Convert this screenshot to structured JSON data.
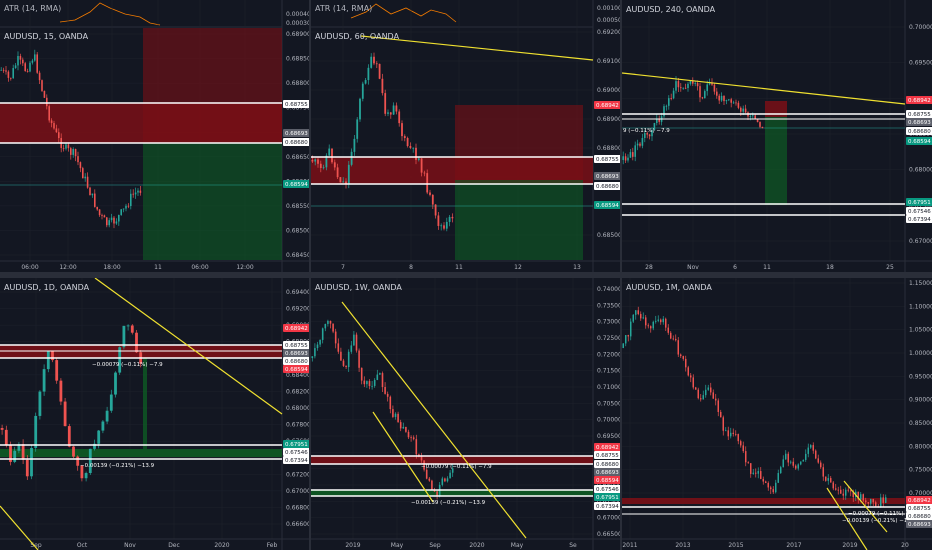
{
  "colors": {
    "background": "#131722",
    "grid": "#1e222d",
    "divider": "#2a2e39",
    "up": "#26a69a",
    "down": "#ef5350",
    "trendline": "#f0e130",
    "level": "#ffffff",
    "atr": "#f57c00",
    "loss_zone": "#7a0f16",
    "profit_zone": "#0e5b24",
    "label_red": "#f23645",
    "label_green": "#089981"
  },
  "panels": [
    {
      "id": "p15",
      "title": "AUDUSD, 15, OANDA",
      "atr_label": "ATR (14, RMA)",
      "atr_ticks": [
        "0.00040",
        "0.00030"
      ],
      "y_ticks": [
        "0.68900",
        "0.68850",
        "0.68800",
        "0.68750",
        "0.68700",
        "0.68650",
        "0.68600",
        "0.68550",
        "0.68500",
        "0.68450"
      ],
      "x_ticks": [
        "06:00",
        "12:00",
        "18:00",
        "11",
        "06:00",
        "12:00"
      ],
      "price_labels": [
        {
          "text": "0.68755",
          "type": "white"
        },
        {
          "text": "0.68693",
          "type": "gray"
        },
        {
          "text": "0.68680",
          "type": "white"
        },
        {
          "text": "0.68594",
          "type": "green"
        }
      ]
    },
    {
      "id": "p60",
      "title": "AUDUSD, 60, OANDA",
      "atr_label": "ATR (14, RMA)",
      "atr_ticks": [
        "0.00100",
        "0.00050"
      ],
      "y_ticks": [
        "0.69200",
        "0.69100",
        "0.69000",
        "0.68900",
        "0.68800",
        "0.68700",
        "0.68600",
        "0.68500"
      ],
      "x_ticks": [
        "7",
        "8",
        "11",
        "12",
        "13"
      ],
      "price_labels": [
        {
          "text": "0.68942",
          "type": "red"
        },
        {
          "text": "0.68755",
          "type": "white"
        },
        {
          "text": "0.68693",
          "type": "gray"
        },
        {
          "text": "0.68680",
          "type": "white"
        },
        {
          "text": "0.68594",
          "type": "green"
        }
      ]
    },
    {
      "id": "p240",
      "title": "AUDUSD, 240, OANDA",
      "y_ticks": [
        "0.70000",
        "0.69500",
        "0.69000",
        "0.68500",
        "0.68000",
        "0.67500",
        "0.67000"
      ],
      "x_ticks": [
        "28",
        "Nov",
        "6",
        "11",
        "18",
        "25"
      ],
      "measure": "9 (−0.11%) −7.9",
      "price_labels": [
        {
          "text": "0.68942",
          "type": "red"
        },
        {
          "text": "0.68755",
          "type": "white"
        },
        {
          "text": "0.68693",
          "type": "gray"
        },
        {
          "text": "0.68680",
          "type": "white"
        },
        {
          "text": "0.68594",
          "type": "green"
        },
        {
          "text": "0.67951",
          "type": "green"
        },
        {
          "text": "0.67546",
          "type": "white"
        },
        {
          "text": "0.67394",
          "type": "white"
        }
      ]
    },
    {
      "id": "p1d",
      "title": "AUDUSD, 1D, OANDA",
      "y_ticks": [
        "0.69400",
        "0.69200",
        "0.69000",
        "0.68800",
        "0.68600",
        "0.68400",
        "0.68200",
        "0.68000",
        "0.67800",
        "0.67600",
        "0.67400",
        "0.67200",
        "0.67000",
        "0.66800",
        "0.66600"
      ],
      "x_ticks": [
        "Sep",
        "Oct",
        "Nov",
        "Dec",
        "2020",
        "Feb"
      ],
      "measure": "−0.00079 (−0.11%) −7.9",
      "measure2": "−0.00139 (−0.21%) −13.9",
      "price_labels": [
        {
          "text": "0.68942",
          "type": "red"
        },
        {
          "text": "0.68755",
          "type": "white"
        },
        {
          "text": "0.68693",
          "type": "gray"
        },
        {
          "text": "0.68680",
          "type": "white"
        },
        {
          "text": "0.68594",
          "type": "red"
        },
        {
          "text": "0.67951",
          "type": "green"
        },
        {
          "text": "0.67546",
          "type": "white"
        },
        {
          "text": "0.67394",
          "type": "white"
        }
      ]
    },
    {
      "id": "p1w",
      "title": "AUDUSD, 1W, OANDA",
      "y_ticks": [
        "0.74000",
        "0.73500",
        "0.73000",
        "0.72500",
        "0.72000",
        "0.71500",
        "0.71000",
        "0.70500",
        "0.70000",
        "0.69500",
        "0.69000",
        "0.68500",
        "0.68000",
        "0.67500",
        "0.67000",
        "0.66500"
      ],
      "x_ticks": [
        "2019",
        "May",
        "Sep",
        "2020",
        "May",
        "Se"
      ],
      "measure": "−0.00079 (−0.11%) −7.9",
      "measure2": "−0.00139 (−0.21%) −13.9",
      "price_labels": [
        {
          "text": "0.68942",
          "type": "red"
        },
        {
          "text": "0.68755",
          "type": "white"
        },
        {
          "text": "0.68680",
          "type": "white"
        },
        {
          "text": "0.68693",
          "type": "gray"
        },
        {
          "text": "0.68594",
          "type": "red"
        },
        {
          "text": "0.67546",
          "type": "white"
        },
        {
          "text": "0.67951",
          "type": "green"
        },
        {
          "text": "0.67394",
          "type": "white"
        }
      ]
    },
    {
      "id": "p1m",
      "title": "AUDUSD, 1M, OANDA",
      "y_ticks": [
        "1.15000",
        "1.10000",
        "1.05000",
        "1.00000",
        "0.95000",
        "0.90000",
        "0.85000",
        "0.80000",
        "0.75000",
        "0.70000"
      ],
      "x_ticks": [
        "2011",
        "2013",
        "2015",
        "2017",
        "2019",
        "20"
      ],
      "measure": "−0.00079 (−0.11%) −7.9",
      "measure2": "−0.00139 (−0.21%) −13.9",
      "price_labels": [
        {
          "text": "0.68942",
          "type": "red"
        },
        {
          "text": "0.68755",
          "type": "white"
        },
        {
          "text": "0.68680",
          "type": "white"
        },
        {
          "text": "0.68693",
          "type": "gray"
        }
      ]
    }
  ]
}
